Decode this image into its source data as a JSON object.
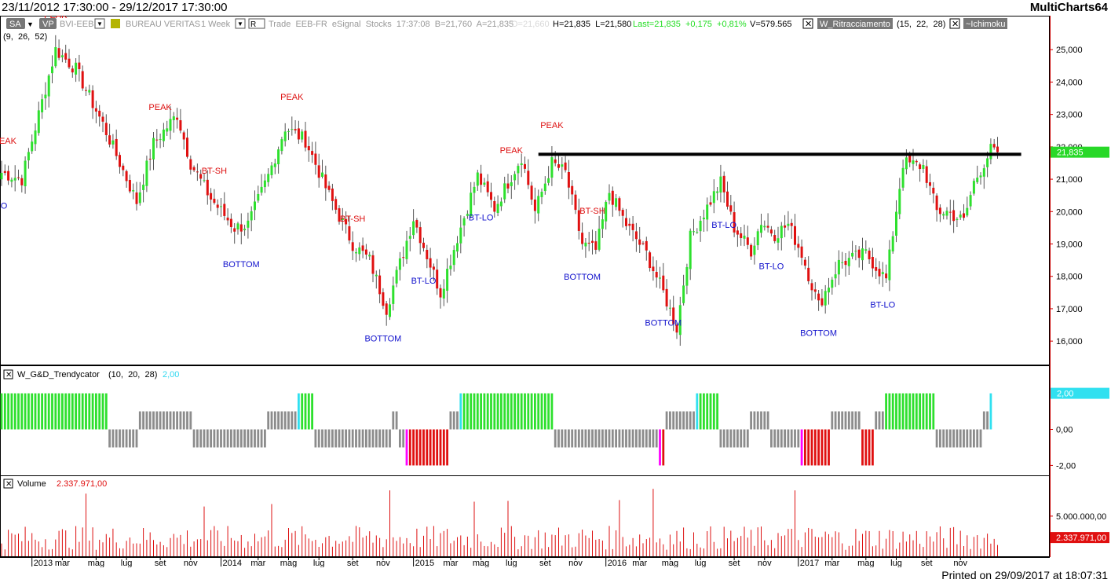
{
  "window": {
    "date_range": "23/11/2012 17:30:00 - 29/12/2017 17:30:00",
    "app_name": "MultiCharts64",
    "printed": "Printed on 29/09/2017 at 18:07:31"
  },
  "header": {
    "sa_button": "SA",
    "vp_button": "VP",
    "symbol": "BVI-EEB",
    "symbol_name": "BUREAU VERITAS",
    "resolution": "1 Week",
    "r_button": "R",
    "info": "Trade  EEB-FR  eSignal  Stocks  17:37:08  B=21,760  A=21,835",
    "open": "O=21,660",
    "hl": "H=21,835  L=21,580",
    "last": "Last=21,835  +0,175  +0,81%",
    "volume_info": "V=579.565",
    "study1_name": "W_Ritracciamento",
    "study1_params": "(15,  22,  28)",
    "study2_name": "~Ichimoku",
    "study2_params": "(9,  26,  52)"
  },
  "colors": {
    "up": "#2ee02e",
    "down": "#e01010",
    "neutral": "#8c8c8c",
    "cyan": "#30e0f0",
    "magenta": "#ff00ff",
    "axis_red": "#cc0000",
    "last_badge": "#28d828",
    "vol_badge": "#e01010"
  },
  "chart_data": [
    {
      "type": "candlestick",
      "name": "price",
      "y_ticks": [
        "16,000",
        "17,000",
        "18,000",
        "19,000",
        "20,000",
        "21,000",
        "22,000",
        "23,000",
        "24,000",
        "25,000"
      ],
      "ylim": [
        15.3,
        26.0
      ],
      "last_value": 21.835,
      "last_label": "21,835",
      "resistance": {
        "value": 21.77,
        "from_bar": 159,
        "to_bar": 302
      },
      "anchors": [
        [
          0,
          21.2
        ],
        [
          6,
          21.0
        ],
        [
          16,
          25.0
        ],
        [
          22,
          24.4
        ],
        [
          30,
          22.7
        ],
        [
          40,
          20.3
        ],
        [
          45,
          22.1
        ],
        [
          52,
          23.0
        ],
        [
          56,
          21.5
        ],
        [
          62,
          20.4
        ],
        [
          69,
          19.5
        ],
        [
          73,
          19.6
        ],
        [
          79,
          21.1
        ],
        [
          84,
          22.6
        ],
        [
          90,
          22.2
        ],
        [
          97,
          20.5
        ],
        [
          104,
          19.0
        ],
        [
          109,
          18.5
        ],
        [
          114,
          17.0
        ],
        [
          122,
          19.8
        ],
        [
          130,
          17.5
        ],
        [
          135,
          19.2
        ],
        [
          141,
          21.1
        ],
        [
          146,
          20.1
        ],
        [
          154,
          21.7
        ],
        [
          158,
          20.0
        ],
        [
          163,
          21.5
        ],
        [
          167,
          21.2
        ],
        [
          172,
          19.0
        ],
        [
          176,
          18.8
        ],
        [
          180,
          20.6
        ],
        [
          185,
          19.6
        ],
        [
          191,
          18.7
        ],
        [
          196,
          17.5
        ],
        [
          200,
          16.4
        ],
        [
          204,
          19.2
        ],
        [
          213,
          20.9
        ],
        [
          217,
          19.5
        ],
        [
          222,
          18.8
        ],
        [
          225,
          19.7
        ],
        [
          229,
          19.3
        ],
        [
          233,
          19.6
        ],
        [
          237,
          18.7
        ],
        [
          242,
          17.1
        ],
        [
          248,
          18.4
        ],
        [
          256,
          18.7
        ],
        [
          262,
          17.9
        ],
        [
          267,
          21.5
        ],
        [
          273,
          21.4
        ],
        [
          277,
          20.0
        ],
        [
          280,
          20.0
        ],
        [
          285,
          19.7
        ],
        [
          288,
          20.9
        ],
        [
          293,
          21.9
        ],
        [
          295,
          21.835
        ]
      ],
      "annotations": [
        {
          "bar": 1,
          "text": "PEAK",
          "kind": "high"
        },
        {
          "bar": 0,
          "text": "LO",
          "kind": "low"
        },
        {
          "bar": 16,
          "text": "PEAK",
          "kind": "high"
        },
        {
          "bar": 47,
          "text": "PEAK",
          "kind": "high"
        },
        {
          "bar": 63,
          "text": "BT-SH",
          "kind": "high"
        },
        {
          "bar": 71,
          "text": "BOTTOM",
          "kind": "low"
        },
        {
          "bar": 86,
          "text": "PEAK",
          "kind": "high"
        },
        {
          "bar": 104,
          "text": "BT-SH",
          "kind": "high"
        },
        {
          "bar": 113,
          "text": "BOTTOM",
          "kind": "low"
        },
        {
          "bar": 125,
          "text": "BT-LO",
          "kind": "low"
        },
        {
          "bar": 142,
          "text": "BT-LO",
          "kind": "low"
        },
        {
          "bar": 151,
          "text": "PEAK",
          "kind": "high"
        },
        {
          "bar": 163,
          "text": "PEAK",
          "kind": "high"
        },
        {
          "bar": 175,
          "text": "BT-SH",
          "kind": "high"
        },
        {
          "bar": 172,
          "text": "BOTTOM",
          "kind": "low"
        },
        {
          "bar": 196,
          "text": "BOTTOM",
          "kind": "low"
        },
        {
          "bar": 214,
          "text": "BT-LO",
          "kind": "low"
        },
        {
          "bar": 228,
          "text": "BT-LO",
          "kind": "low"
        },
        {
          "bar": 242,
          "text": "BOTTOM",
          "kind": "low"
        },
        {
          "bar": 261,
          "text": "BT-LO",
          "kind": "low"
        }
      ]
    },
    {
      "type": "bar",
      "name": "W_G&D_Trendycator",
      "title": "W_G&D_Trendycator",
      "params": "(10,  20,  28)",
      "last_label": "2,00",
      "y_ticks": [
        "2,00",
        "0,00",
        "-2,00"
      ],
      "ylim": [
        -2.2,
        2.2
      ],
      "segments": [
        {
          "from": 0,
          "to": 31,
          "v": 2,
          "c": "up"
        },
        {
          "from": 32,
          "to": 40,
          "v": -1,
          "c": "neutral"
        },
        {
          "from": 41,
          "to": 56,
          "v": 1,
          "c": "neutral"
        },
        {
          "from": 57,
          "to": 78,
          "v": -1,
          "c": "neutral"
        },
        {
          "from": 79,
          "to": 87,
          "v": 1,
          "c": "neutral"
        },
        {
          "from": 88,
          "to": 88,
          "v": 2,
          "c": "cyan"
        },
        {
          "from": 89,
          "to": 92,
          "v": 2,
          "c": "up"
        },
        {
          "from": 93,
          "to": 115,
          "v": -1,
          "c": "neutral"
        },
        {
          "from": 116,
          "to": 117,
          "v": 1,
          "c": "neutral"
        },
        {
          "from": 118,
          "to": 119,
          "v": -1,
          "c": "neutral"
        },
        {
          "from": 120,
          "to": 120,
          "v": -2,
          "c": "magenta"
        },
        {
          "from": 121,
          "to": 132,
          "v": -2,
          "c": "down"
        },
        {
          "from": 133,
          "to": 135,
          "v": 1,
          "c": "neutral"
        },
        {
          "from": 136,
          "to": 136,
          "v": 2,
          "c": "cyan"
        },
        {
          "from": 137,
          "to": 163,
          "v": 2,
          "c": "up"
        },
        {
          "from": 164,
          "to": 194,
          "v": -1,
          "c": "neutral"
        },
        {
          "from": 195,
          "to": 195,
          "v": -2,
          "c": "magenta"
        },
        {
          "from": 196,
          "to": 196,
          "v": -2,
          "c": "down"
        },
        {
          "from": 197,
          "to": 205,
          "v": 1,
          "c": "neutral"
        },
        {
          "from": 206,
          "to": 206,
          "v": 2,
          "c": "cyan"
        },
        {
          "from": 207,
          "to": 212,
          "v": 2,
          "c": "up"
        },
        {
          "from": 213,
          "to": 221,
          "v": -1,
          "c": "neutral"
        },
        {
          "from": 222,
          "to": 227,
          "v": 1,
          "c": "neutral"
        },
        {
          "from": 228,
          "to": 236,
          "v": -1,
          "c": "neutral"
        },
        {
          "from": 237,
          "to": 237,
          "v": -2,
          "c": "magenta"
        },
        {
          "from": 238,
          "to": 245,
          "v": -2,
          "c": "down"
        },
        {
          "from": 246,
          "to": 254,
          "v": 1,
          "c": "neutral"
        },
        {
          "from": 255,
          "to": 258,
          "v": -2,
          "c": "down"
        },
        {
          "from": 259,
          "to": 261,
          "v": 1,
          "c": "neutral"
        },
        {
          "from": 262,
          "to": 276,
          "v": 2,
          "c": "up"
        },
        {
          "from": 277,
          "to": 290,
          "v": -1,
          "c": "neutral"
        },
        {
          "from": 291,
          "to": 292,
          "v": 1,
          "c": "neutral"
        },
        {
          "from": 293,
          "to": 293,
          "v": 2,
          "c": "cyan"
        }
      ]
    },
    {
      "type": "bar",
      "name": "Volume",
      "title": "Volume",
      "value_label": "2.337.971,00",
      "last_value": 2337971,
      "y_ticks": [
        "5.000.000,00"
      ],
      "ylim": [
        0,
        9000000
      ],
      "spikes": [
        [
          25,
          7800000
        ],
        [
          115,
          8200000
        ],
        [
          193,
          8400000
        ],
        [
          235,
          8200000
        ],
        [
          183,
          7000000
        ],
        [
          150,
          6900000
        ],
        [
          140,
          6800000
        ],
        [
          80,
          6500000
        ],
        [
          60,
          6200000
        ]
      ]
    }
  ],
  "time_axis": {
    "labels": [
      {
        "bar": 9,
        "text": "2013",
        "year": true
      },
      {
        "bar": 18,
        "text": "mar"
      },
      {
        "bar": 28,
        "text": "mag"
      },
      {
        "bar": 37,
        "text": "lug"
      },
      {
        "bar": 47,
        "text": "set"
      },
      {
        "bar": 56,
        "text": "nov"
      },
      {
        "bar": 65,
        "text": "2014",
        "year": true
      },
      {
        "bar": 76,
        "text": "mar"
      },
      {
        "bar": 85,
        "text": "mag"
      },
      {
        "bar": 94,
        "text": "lug"
      },
      {
        "bar": 104,
        "text": "set"
      },
      {
        "bar": 113,
        "text": "nov"
      },
      {
        "bar": 122,
        "text": "2015",
        "year": true
      },
      {
        "bar": 133,
        "text": "mar"
      },
      {
        "bar": 142,
        "text": "mag"
      },
      {
        "bar": 151,
        "text": "lug"
      },
      {
        "bar": 161,
        "text": "set"
      },
      {
        "bar": 170,
        "text": "nov"
      },
      {
        "bar": 179,
        "text": "2016",
        "year": true
      },
      {
        "bar": 189,
        "text": "mar"
      },
      {
        "bar": 198,
        "text": "mag"
      },
      {
        "bar": 207,
        "text": "lug"
      },
      {
        "bar": 217,
        "text": "set"
      },
      {
        "bar": 226,
        "text": "nov"
      },
      {
        "bar": 236,
        "text": "2017",
        "year": true
      },
      {
        "bar": 246,
        "text": "mar"
      },
      {
        "bar": 256,
        "text": "mag"
      },
      {
        "bar": 265,
        "text": "lug"
      },
      {
        "bar": 274,
        "text": "set"
      },
      {
        "bar": 284,
        "text": "nov"
      }
    ]
  }
}
